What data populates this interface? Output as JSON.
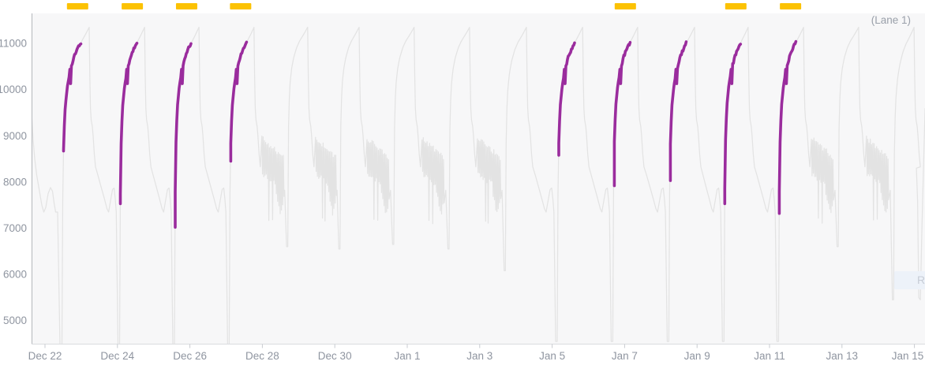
{
  "chart": {
    "lane_label": "(Lane 1)",
    "reset_button_text": "R",
    "colors": {
      "highlight": "#9a2c9d",
      "marker": "#fcc203",
      "trace": "#e3e3e3",
      "plot_bg": "#f7f7f8",
      "axis_left": "#b4b7bc",
      "axis_bottom": "#dadcdf",
      "tick": "#c8cbd0",
      "label": "#8f95a0",
      "lane": "#9aa0aa",
      "button_bg": "#edf2f9",
      "button_text": "#c6ccd6"
    }
  },
  "chart_data": {
    "type": "line",
    "title": "",
    "lane": "(Lane 1)",
    "ylim": [
      4450,
      11550
    ],
    "y_ticks": [
      5000,
      6000,
      7000,
      8000,
      9000,
      10000,
      11000
    ],
    "x_ticks": [
      {
        "label": "Dec 22",
        "day": 0
      },
      {
        "label": "Dec 24",
        "day": 2
      },
      {
        "label": "Dec 26",
        "day": 4
      },
      {
        "label": "Dec 28",
        "day": 6
      },
      {
        "label": "Dec 30",
        "day": 8
      },
      {
        "label": "Jan 1",
        "day": 10
      },
      {
        "label": "Jan 3",
        "day": 12
      },
      {
        "label": "Jan 5",
        "day": 14
      },
      {
        "label": "Jan 7",
        "day": 16
      },
      {
        "label": "Jan 9",
        "day": 18
      },
      {
        "label": "Jan 11",
        "day": 20
      },
      {
        "label": "Jan 13",
        "day": 22
      },
      {
        "label": "Jan 15",
        "day": 24
      }
    ],
    "peak_value": 11350,
    "highlight_end_value": 11030,
    "notch_value": 10300,
    "cycles": [
      {
        "peak_day": 1.22,
        "highlight_start": 8670,
        "after": "dive",
        "dip": 4450
      },
      {
        "peak_day": 2.75,
        "highlight_start": 7530,
        "after": "dive",
        "dip": 4450
      },
      {
        "peak_day": 4.25,
        "highlight_start": 7020,
        "after": "dive",
        "dip": 4450
      },
      {
        "peak_day": 5.77,
        "highlight_start": 8450,
        "after": "spikes",
        "dip": 6600
      },
      {
        "peak_day": 7.25,
        "highlight_start": null,
        "after": "spikes",
        "dip": 6550
      },
      {
        "peak_day": 8.67,
        "highlight_start": null,
        "after": "spikes",
        "dip": 6650
      },
      {
        "peak_day": 10.19,
        "highlight_start": null,
        "after": "spikes",
        "dip": 6550
      },
      {
        "peak_day": 11.72,
        "highlight_start": null,
        "after": "spikes",
        "dip": 6080
      },
      {
        "peak_day": 13.29,
        "highlight_start": null,
        "after": "dive",
        "dip": 4550
      },
      {
        "peak_day": 14.84,
        "highlight_start": 8580,
        "after": "dive",
        "dip": 4550
      },
      {
        "peak_day": 16.36,
        "highlight_start": 7920,
        "after": "dive",
        "dip": 4550
      },
      {
        "peak_day": 17.93,
        "highlight_start": 8030,
        "after": "dive",
        "dip": 4550
      },
      {
        "peak_day": 19.41,
        "highlight_start": 7530,
        "after": "dive",
        "dip": 4550
      },
      {
        "peak_day": 20.94,
        "highlight_start": 7320,
        "after": "spikes",
        "dip": 6600
      },
      {
        "peak_day": 22.46,
        "highlight_start": null,
        "after": "spikes",
        "dip": 5450
      },
      {
        "peak_day": 23.99,
        "highlight_start": null,
        "after": "dive",
        "dip": 5450
      }
    ],
    "lead_in": [
      [
        40,
        9500
      ],
      [
        42,
        8900
      ],
      [
        44,
        8500
      ],
      [
        46.5,
        8150
      ],
      [
        50,
        7800
      ],
      [
        53,
        7500
      ],
      [
        55.5,
        7350
      ],
      [
        58,
        7450
      ],
      [
        61,
        7750
      ],
      [
        64,
        7880
      ],
      [
        66.5,
        7800
      ],
      [
        68.5,
        7550
      ],
      [
        70.5,
        7350
      ],
      [
        73,
        7350
      ],
      [
        76,
        4450
      ],
      [
        78.5,
        4450
      ]
    ],
    "tail": [
      [
        3,
        8300
      ],
      [
        4.5,
        7600
      ],
      [
        6,
        5500
      ],
      [
        8,
        5450
      ],
      [
        10,
        7000
      ],
      [
        12,
        8300
      ],
      [
        14,
        9600
      ]
    ],
    "markers_top": {
      "color": "#fcc203",
      "width_days": 0.588,
      "days": [
        0.9,
        2.41,
        3.91,
        5.4,
        16.02,
        19.07,
        20.58
      ]
    }
  }
}
